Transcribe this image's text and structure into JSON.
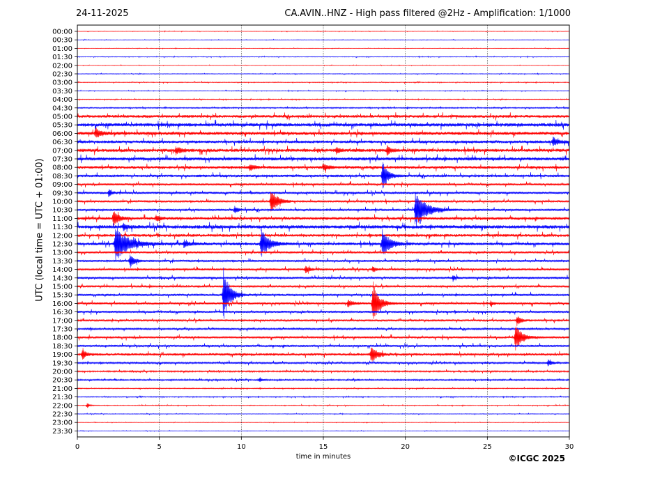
{
  "header": {
    "date": "24-11-2025",
    "title": "CA.AVIN..HNZ - High pass filtered @2Hz - Amplification: 1/1000"
  },
  "footer": {
    "copyright": "©ICGC 2025"
  },
  "chart_data": {
    "type": "line",
    "subtype": "helicorder",
    "xlabel": "time in minutes",
    "ylabel": "UTC (local time = UTC + 01:00)",
    "xlim": [
      0,
      30
    ],
    "x_ticks": [
      0,
      5,
      10,
      15,
      20,
      25,
      30
    ],
    "grid": "vertical dotted lines at 5-minute ticks",
    "colors": {
      "odd_trace": "#ff0000",
      "even_trace": "#0000ff"
    },
    "rows": [
      "00:00",
      "00:30",
      "01:00",
      "01:30",
      "02:00",
      "02:30",
      "03:00",
      "03:30",
      "04:00",
      "04:30",
      "05:00",
      "05:30",
      "06:00",
      "06:30",
      "07:00",
      "07:30",
      "08:00",
      "08:30",
      "09:00",
      "09:30",
      "10:00",
      "10:30",
      "11:00",
      "11:30",
      "12:00",
      "12:30",
      "13:00",
      "13:30",
      "14:00",
      "14:30",
      "15:00",
      "15:30",
      "16:00",
      "16:30",
      "17:00",
      "17:30",
      "18:00",
      "18:30",
      "19:00",
      "19:30",
      "20:00",
      "20:30",
      "21:00",
      "21:30",
      "22:00",
      "22:30",
      "23:00",
      "23:30"
    ],
    "noise_levels": [
      0.3,
      0.3,
      0.3,
      0.4,
      0.3,
      0.4,
      0.5,
      0.4,
      0.5,
      0.8,
      2.0,
      2.5,
      2.3,
      2.0,
      2.3,
      2.3,
      2.0,
      1.8,
      1.5,
      1.6,
      1.5,
      1.5,
      2.0,
      2.5,
      2.0,
      2.0,
      1.5,
      1.5,
      1.5,
      1.5,
      1.5,
      1.5,
      1.5,
      1.5,
      1.5,
      1.2,
      1.5,
      1.5,
      1.8,
      1.2,
      1.0,
      1.0,
      0.6,
      0.6,
      0.5,
      0.4,
      0.3,
      0.3
    ],
    "events": [
      {
        "row": 12,
        "minute": 1.1,
        "amplitude": 8,
        "duration": 0.8
      },
      {
        "row": 14,
        "minute": 6.0,
        "amplitude": 6,
        "duration": 0.8
      },
      {
        "row": 14,
        "minute": 15.8,
        "amplitude": 5,
        "duration": 0.5
      },
      {
        "row": 14,
        "minute": 18.9,
        "amplitude": 7,
        "duration": 0.6
      },
      {
        "row": 13,
        "minute": 29.0,
        "amplitude": 7,
        "duration": 0.8
      },
      {
        "row": 16,
        "minute": 10.5,
        "amplitude": 5,
        "duration": 0.8
      },
      {
        "row": 16,
        "minute": 15.0,
        "amplitude": 5,
        "duration": 0.8
      },
      {
        "row": 17,
        "minute": 18.6,
        "amplitude": 22,
        "duration": 0.8
      },
      {
        "row": 19,
        "minute": 1.9,
        "amplitude": 6,
        "duration": 0.5
      },
      {
        "row": 20,
        "minute": 11.8,
        "amplitude": 20,
        "duration": 1.0
      },
      {
        "row": 21,
        "minute": 9.6,
        "amplitude": 6,
        "duration": 0.5
      },
      {
        "row": 21,
        "minute": 20.6,
        "amplitude": 30,
        "duration": 1.6
      },
      {
        "row": 22,
        "minute": 2.2,
        "amplitude": 12,
        "duration": 0.8
      },
      {
        "row": 22,
        "minute": 4.8,
        "amplitude": 5,
        "duration": 0.6
      },
      {
        "row": 23,
        "minute": 2.8,
        "amplitude": 5,
        "duration": 0.6
      },
      {
        "row": 25,
        "minute": 2.3,
        "amplitude": 26,
        "duration": 2.0
      },
      {
        "row": 25,
        "minute": 11.2,
        "amplitude": 22,
        "duration": 1.2
      },
      {
        "row": 25,
        "minute": 18.6,
        "amplitude": 20,
        "duration": 1.2
      },
      {
        "row": 25,
        "minute": 6.5,
        "amplitude": 6,
        "duration": 0.8
      },
      {
        "row": 27,
        "minute": 3.2,
        "amplitude": 9,
        "duration": 0.8
      },
      {
        "row": 28,
        "minute": 13.9,
        "amplitude": 6,
        "duration": 0.6
      },
      {
        "row": 28,
        "minute": 18.0,
        "amplitude": 5,
        "duration": 0.5
      },
      {
        "row": 29,
        "minute": 22.9,
        "amplitude": 5,
        "duration": 0.4
      },
      {
        "row": 31,
        "minute": 8.9,
        "amplitude": 40,
        "duration": 1.0
      },
      {
        "row": 32,
        "minute": 16.5,
        "amplitude": 6,
        "duration": 0.8
      },
      {
        "row": 32,
        "minute": 18.0,
        "amplitude": 32,
        "duration": 1.0
      },
      {
        "row": 32,
        "minute": 25.2,
        "amplitude": 4,
        "duration": 0.5
      },
      {
        "row": 34,
        "minute": 26.8,
        "amplitude": 8,
        "duration": 0.6
      },
      {
        "row": 36,
        "minute": 26.7,
        "amplitude": 20,
        "duration": 1.0
      },
      {
        "row": 38,
        "minute": 0.3,
        "amplitude": 8,
        "duration": 0.6
      },
      {
        "row": 38,
        "minute": 17.9,
        "amplitude": 12,
        "duration": 1.0
      },
      {
        "row": 39,
        "minute": 28.7,
        "amplitude": 5,
        "duration": 0.6
      },
      {
        "row": 41,
        "minute": 11.1,
        "amplitude": 4,
        "duration": 0.4
      },
      {
        "row": 44,
        "minute": 0.6,
        "amplitude": 4,
        "duration": 0.4
      }
    ]
  }
}
